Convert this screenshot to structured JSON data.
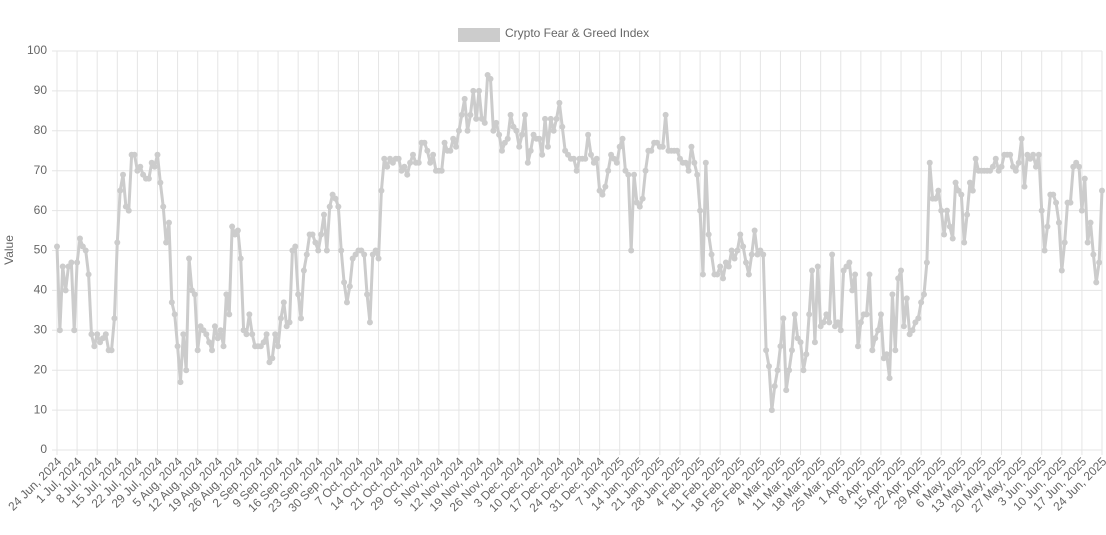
{
  "chart_data": {
    "type": "line",
    "ylabel": "Value",
    "legend": "top",
    "grid": true,
    "ylim": [
      0,
      100
    ],
    "yticks": [
      0,
      10,
      20,
      30,
      40,
      50,
      60,
      70,
      80,
      90,
      100
    ],
    "categories": [
      "24 Jun, 2024",
      null,
      null,
      null,
      null,
      null,
      null,
      "1 Jul, 2024",
      null,
      null,
      null,
      null,
      null,
      null,
      "8 Jul, 2024",
      null,
      null,
      null,
      null,
      null,
      null,
      "15 Jul, 2024",
      null,
      null,
      null,
      null,
      null,
      null,
      "22 Jul, 2024",
      null,
      null,
      null,
      null,
      null,
      null,
      "29 Jul, 2024",
      null,
      null,
      null,
      null,
      null,
      null,
      "5 Aug, 2024",
      null,
      null,
      null,
      null,
      null,
      null,
      "12 Aug, 2024",
      null,
      null,
      null,
      null,
      null,
      null,
      "19 Aug, 2024",
      null,
      null,
      null,
      null,
      null,
      null,
      "26 Aug, 2024",
      null,
      null,
      null,
      null,
      null,
      null,
      "2 Sep, 2024",
      null,
      null,
      null,
      null,
      null,
      null,
      "9 Sep, 2024",
      null,
      null,
      null,
      null,
      null,
      null,
      "16 Sep, 2024",
      null,
      null,
      null,
      null,
      null,
      null,
      "23 Sep, 2024",
      null,
      null,
      null,
      null,
      null,
      null,
      "30 Sep, 2024",
      null,
      null,
      null,
      null,
      null,
      null,
      "7 Oct, 2024",
      null,
      null,
      null,
      null,
      null,
      null,
      "14 Oct, 2024",
      null,
      null,
      null,
      null,
      null,
      null,
      "21 Oct, 2024",
      null,
      null,
      null,
      null,
      null,
      null,
      "29 Oct, 2024",
      null,
      null,
      null,
      null,
      null,
      null,
      "5 Nov, 2024",
      null,
      null,
      null,
      null,
      null,
      null,
      "12 Nov, 2024",
      null,
      null,
      null,
      null,
      null,
      null,
      "19 Nov, 2024",
      null,
      null,
      null,
      null,
      null,
      null,
      "26 Nov, 2024",
      null,
      null,
      null,
      null,
      null,
      null,
      "3 Dec, 2024",
      null,
      null,
      null,
      null,
      null,
      null,
      "10 Dec, 2024",
      null,
      null,
      null,
      null,
      null,
      null,
      "17 Dec, 2024",
      null,
      null,
      null,
      null,
      null,
      null,
      "24 Dec, 2024",
      null,
      null,
      null,
      null,
      null,
      null,
      "31 Dec, 2024",
      null,
      null,
      null,
      null,
      null,
      null,
      "7 Jan, 2025",
      null,
      null,
      null,
      null,
      null,
      null,
      "14 Jan, 2025",
      null,
      null,
      null,
      null,
      null,
      null,
      "21 Jan, 2025",
      null,
      null,
      null,
      null,
      null,
      null,
      "28 Jan, 2025",
      null,
      null,
      null,
      null,
      null,
      null,
      "4 Feb, 2025",
      null,
      null,
      null,
      null,
      null,
      null,
      "11 Feb, 2025",
      null,
      null,
      null,
      null,
      null,
      null,
      "18 Feb, 2025",
      null,
      null,
      null,
      null,
      null,
      null,
      "25 Feb, 2025",
      null,
      null,
      null,
      null,
      null,
      null,
      "4 Mar, 2025",
      null,
      null,
      null,
      null,
      null,
      null,
      "11 Mar, 2025",
      null,
      null,
      null,
      null,
      null,
      null,
      "18 Mar, 2025",
      null,
      null,
      null,
      null,
      null,
      null,
      "25 Mar, 2025",
      null,
      null,
      null,
      null,
      null,
      null,
      "1 Apr, 2025",
      null,
      null,
      null,
      null,
      null,
      null,
      "8 Apr, 2025",
      null,
      null,
      null,
      null,
      null,
      null,
      "15 Apr, 2025",
      null,
      null,
      null,
      null,
      null,
      null,
      "22 Apr, 2025",
      null,
      null,
      null,
      null,
      null,
      null,
      "29 Apr, 2025",
      null,
      null,
      null,
      null,
      null,
      null,
      "6 May, 2025",
      null,
      null,
      null,
      null,
      null,
      null,
      "13 May, 2025",
      null,
      null,
      null,
      null,
      null,
      null,
      "20 May, 2025",
      null,
      null,
      null,
      null,
      null,
      null,
      "27 May, 2025",
      null,
      null,
      null,
      null,
      null,
      null,
      "3 Jun, 2025",
      null,
      null,
      null,
      null,
      null,
      null,
      "10 Jun, 2025",
      null,
      null,
      null,
      null,
      null,
      null,
      "17 Jun, 2025",
      null,
      null,
      null,
      null,
      null,
      null,
      "24 Jun, 2025"
    ],
    "series": [
      {
        "name": "Crypto Fear & Greed Index",
        "color": "#cccccc",
        "values": [
          51,
          30,
          46,
          40,
          46,
          47,
          30,
          47,
          53,
          51,
          50,
          44,
          29,
          26,
          29,
          27,
          28,
          29,
          25,
          25,
          33,
          52,
          65,
          69,
          61,
          60,
          74,
          74,
          70,
          71,
          69,
          68,
          68,
          72,
          71,
          74,
          67,
          61,
          52,
          57,
          37,
          34,
          26,
          17,
          29,
          20,
          48,
          40,
          39,
          25,
          31,
          30,
          29,
          27,
          25,
          31,
          28,
          30,
          26,
          39,
          34,
          56,
          54,
          55,
          48,
          30,
          29,
          34,
          29,
          26,
          26,
          26,
          27,
          29,
          22,
          23,
          29,
          26,
          33,
          37,
          31,
          32,
          50,
          51,
          39,
          33,
          45,
          49,
          54,
          54,
          52,
          50,
          54,
          59,
          50,
          61,
          64,
          63,
          61,
          50,
          42,
          37,
          41,
          48,
          49,
          50,
          50,
          49,
          39,
          32,
          49,
          50,
          48,
          65,
          73,
          71,
          73,
          72,
          73,
          73,
          70,
          71,
          69,
          72,
          74,
          72,
          72,
          77,
          77,
          75,
          72,
          74,
          70,
          70,
          70,
          77,
          75,
          75,
          78,
          76,
          80,
          84,
          88,
          80,
          84,
          90,
          83,
          90,
          83,
          82,
          94,
          93,
          80,
          82,
          79,
          75,
          77,
          78,
          84,
          81,
          80,
          76,
          79,
          84,
          72,
          75,
          79,
          78,
          78,
          74,
          83,
          76,
          83,
          80,
          83,
          87,
          81,
          75,
          74,
          73,
          73,
          70,
          73,
          73,
          73,
          79,
          74,
          72,
          73,
          65,
          64,
          66,
          70,
          74,
          73,
          72,
          76,
          78,
          70,
          69,
          50,
          69,
          62,
          61,
          63,
          70,
          75,
          75,
          77,
          77,
          76,
          76,
          84,
          75,
          75,
          75,
          75,
          73,
          72,
          72,
          70,
          76,
          72,
          69,
          60,
          44,
          72,
          54,
          49,
          44,
          44,
          46,
          43,
          47,
          46,
          50,
          48,
          50,
          54,
          51,
          47,
          44,
          49,
          55,
          49,
          50,
          49,
          25,
          21,
          10,
          16,
          20,
          26,
          33,
          15,
          20,
          25,
          34,
          28,
          27,
          20,
          24,
          34,
          45,
          27,
          46,
          31,
          32,
          34,
          32,
          49,
          31,
          32,
          30,
          45,
          46,
          47,
          40,
          44,
          26,
          32,
          34,
          34,
          44,
          25,
          28,
          30,
          34,
          23,
          24,
          18,
          39,
          25,
          43,
          45,
          31,
          38,
          29,
          30,
          32,
          33,
          37,
          39,
          47,
          72,
          63,
          63,
          65,
          60,
          54,
          60,
          56,
          53,
          67,
          65,
          64,
          52,
          59,
          67,
          65,
          73,
          70,
          70,
          70,
          70,
          70,
          71,
          73,
          70,
          71,
          74,
          74,
          74,
          71,
          70,
          72,
          78,
          66,
          74,
          73,
          74,
          71,
          74,
          60,
          50,
          56,
          64,
          64,
          62,
          57,
          45,
          52,
          62,
          62,
          71,
          72,
          71,
          60,
          68,
          52,
          57,
          49,
          42,
          47,
          65
        ]
      }
    ]
  }
}
